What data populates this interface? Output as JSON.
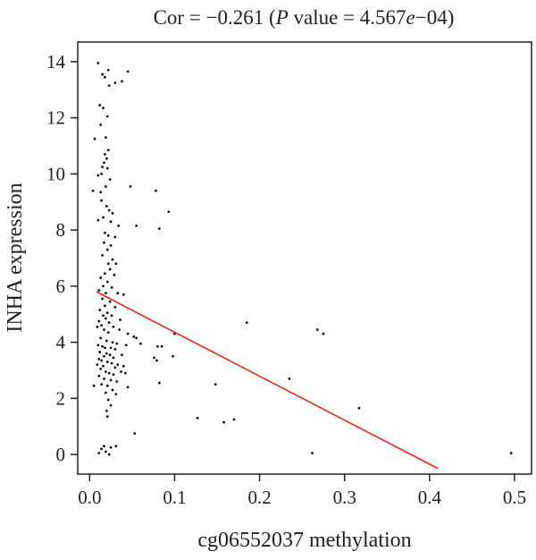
{
  "chart_data": {
    "type": "scatter",
    "title_parts": {
      "prefix": "Cor = −0.261 (",
      "p": "P",
      "mid": " value = 4.567",
      "e": "e",
      "suffix": "−04)"
    },
    "xlabel": "cg06552037 methylation",
    "ylabel": "INHA expression",
    "xlim": [
      -0.014,
      0.52
    ],
    "ylim": [
      -0.7,
      14.7
    ],
    "xticks": [
      0,
      0.1,
      0.2,
      0.3,
      0.4,
      0.5
    ],
    "xtick_labels": [
      "0.0",
      "0.1",
      "0.2",
      "0.3",
      "0.4",
      "0.5"
    ],
    "yticks": [
      0,
      2,
      4,
      6,
      8,
      10,
      12,
      14
    ],
    "ytick_labels": [
      "0",
      "2",
      "4",
      "6",
      "8",
      "10",
      "12",
      "14"
    ],
    "grid": false,
    "regression_line": {
      "color": "#e8231f",
      "x0": 0.008,
      "y0": 5.8,
      "x1": 0.41,
      "y1": -0.5
    },
    "point_color": "#111111",
    "points": [
      [
        0.01,
        13.95
      ],
      [
        0.015,
        13.55
      ],
      [
        0.022,
        13.7
      ],
      [
        0.018,
        13.45
      ],
      [
        0.03,
        13.25
      ],
      [
        0.038,
        13.3
      ],
      [
        0.045,
        13.65
      ],
      [
        0.023,
        13.15
      ],
      [
        0.012,
        12.45
      ],
      [
        0.016,
        12.35
      ],
      [
        0.021,
        12.05
      ],
      [
        0.013,
        11.75
      ],
      [
        0.006,
        11.25
      ],
      [
        0.019,
        11.3
      ],
      [
        0.022,
        10.85
      ],
      [
        0.018,
        10.7
      ],
      [
        0.02,
        10.55
      ],
      [
        0.017,
        10.4
      ],
      [
        0.015,
        10.25
      ],
      [
        0.021,
        10.2
      ],
      [
        0.014,
        10.0
      ],
      [
        0.01,
        9.95
      ],
      [
        0.024,
        9.8
      ],
      [
        0.019,
        9.55
      ],
      [
        0.004,
        9.4
      ],
      [
        0.013,
        9.35
      ],
      [
        0.048,
        9.55
      ],
      [
        0.078,
        9.4
      ],
      [
        0.014,
        9.05
      ],
      [
        0.02,
        8.85
      ],
      [
        0.023,
        8.7
      ],
      [
        0.027,
        8.6
      ],
      [
        0.016,
        8.45
      ],
      [
        0.01,
        8.35
      ],
      [
        0.025,
        8.3
      ],
      [
        0.093,
        8.65
      ],
      [
        0.055,
        8.15
      ],
      [
        0.034,
        8.15
      ],
      [
        0.082,
        8.05
      ],
      [
        0.018,
        7.9
      ],
      [
        0.022,
        7.8
      ],
      [
        0.03,
        7.75
      ],
      [
        0.017,
        7.55
      ],
      [
        0.025,
        7.45
      ],
      [
        0.021,
        7.3
      ],
      [
        0.015,
        7.1
      ],
      [
        0.027,
        6.95
      ],
      [
        0.022,
        6.8
      ],
      [
        0.031,
        6.8
      ],
      [
        0.024,
        6.6
      ],
      [
        0.018,
        6.45
      ],
      [
        0.029,
        6.4
      ],
      [
        0.013,
        6.3
      ],
      [
        0.021,
        6.15
      ],
      [
        0.016,
        6.0
      ],
      [
        0.026,
        5.95
      ],
      [
        0.011,
        5.85
      ],
      [
        0.019,
        5.75
      ],
      [
        0.033,
        5.75
      ],
      [
        0.04,
        5.7
      ],
      [
        0.015,
        5.55
      ],
      [
        0.024,
        5.45
      ],
      [
        0.018,
        5.3
      ],
      [
        0.03,
        5.25
      ],
      [
        0.012,
        5.15
      ],
      [
        0.021,
        5.05
      ],
      [
        0.016,
        4.95
      ],
      [
        0.026,
        4.95
      ],
      [
        0.019,
        4.85
      ],
      [
        0.011,
        4.75
      ],
      [
        0.023,
        4.7
      ],
      [
        0.036,
        4.8
      ],
      [
        0.014,
        4.6
      ],
      [
        0.009,
        4.55
      ],
      [
        0.028,
        4.55
      ],
      [
        0.017,
        4.45
      ],
      [
        0.022,
        4.35
      ],
      [
        0.035,
        4.45
      ],
      [
        0.045,
        4.3
      ],
      [
        0.052,
        4.2
      ],
      [
        0.055,
        4.15
      ],
      [
        0.013,
        4.15
      ],
      [
        0.02,
        4.05
      ],
      [
        0.027,
        4.0
      ],
      [
        0.032,
        3.95
      ],
      [
        0.01,
        3.9
      ],
      [
        0.015,
        3.85
      ],
      [
        0.018,
        3.8
      ],
      [
        0.025,
        3.8
      ],
      [
        0.03,
        3.75
      ],
      [
        0.043,
        3.9
      ],
      [
        0.06,
        3.95
      ],
      [
        0.08,
        3.85
      ],
      [
        0.085,
        3.85
      ],
      [
        0.012,
        3.65
      ],
      [
        0.02,
        3.6
      ],
      [
        0.024,
        3.55
      ],
      [
        0.017,
        3.5
      ],
      [
        0.028,
        3.45
      ],
      [
        0.038,
        3.55
      ],
      [
        0.076,
        3.45
      ],
      [
        0.079,
        3.35
      ],
      [
        0.098,
        3.5
      ],
      [
        0.011,
        3.4
      ],
      [
        0.014,
        3.35
      ],
      [
        0.021,
        3.3
      ],
      [
        0.026,
        3.25
      ],
      [
        0.033,
        3.2
      ],
      [
        0.009,
        3.2
      ],
      [
        0.016,
        3.15
      ],
      [
        0.03,
        3.1
      ],
      [
        0.04,
        3.15
      ],
      [
        0.013,
        3.05
      ],
      [
        0.019,
        2.95
      ],
      [
        0.023,
        2.9
      ],
      [
        0.028,
        2.85
      ],
      [
        0.037,
        2.95
      ],
      [
        0.042,
        2.9
      ],
      [
        0.011,
        2.8
      ],
      [
        0.017,
        2.7
      ],
      [
        0.025,
        2.65
      ],
      [
        0.032,
        2.6
      ],
      [
        0.005,
        2.45
      ],
      [
        0.014,
        2.5
      ],
      [
        0.021,
        2.45
      ],
      [
        0.045,
        2.4
      ],
      [
        0.082,
        2.55
      ],
      [
        0.148,
        2.5
      ],
      [
        0.235,
        2.7
      ],
      [
        0.027,
        2.3
      ],
      [
        0.019,
        2.2
      ],
      [
        0.031,
        2.15
      ],
      [
        0.022,
        1.95
      ],
      [
        0.025,
        1.75
      ],
      [
        0.02,
        1.55
      ],
      [
        0.021,
        1.35
      ],
      [
        0.127,
        1.3
      ],
      [
        0.158,
        1.15
      ],
      [
        0.17,
        1.25
      ],
      [
        0.317,
        1.65
      ],
      [
        0.053,
        0.75
      ],
      [
        0.017,
        0.3
      ],
      [
        0.025,
        0.25
      ],
      [
        0.031,
        0.3
      ],
      [
        0.014,
        0.2
      ],
      [
        0.019,
        0.1
      ],
      [
        0.011,
        0.05
      ],
      [
        0.023,
        0.0
      ],
      [
        0.262,
        0.05
      ],
      [
        0.496,
        0.05
      ],
      [
        0.185,
        4.7
      ],
      [
        0.268,
        4.45
      ],
      [
        0.275,
        4.3
      ],
      [
        0.1,
        4.3
      ]
    ]
  }
}
